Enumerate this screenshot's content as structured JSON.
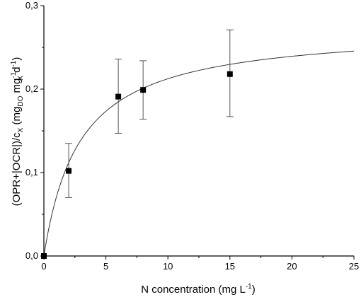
{
  "chart_data": {
    "type": "scatter",
    "x_ticks": [
      "0",
      "5",
      "10",
      "15",
      "20",
      "25"
    ],
    "y_ticks": [
      "0,0",
      "0,1",
      "0,2",
      "0,3"
    ],
    "xlim": [
      0,
      25
    ],
    "ylim": [
      0,
      0.3
    ],
    "xlabel": {
      "main": "N concentration (mg L",
      "sup": "-1",
      "tail": ")"
    },
    "ylabel": {
      "p1": "(OPR+|OCR|)/c",
      "s1": "X",
      "p2": " (mg",
      "s2": "DO",
      "p3": " mg",
      "sup3": "-1",
      "s3": "X",
      "p4": " d",
      "sup4": "-1",
      "p5": ")"
    },
    "points": [
      {
        "x": 0,
        "y": 0.0,
        "err_low": 0.0,
        "err_high": 0.0
      },
      {
        "x": 2,
        "y": 0.102,
        "err_low": 0.07,
        "err_high": 0.135
      },
      {
        "x": 6,
        "y": 0.191,
        "err_low": 0.147,
        "err_high": 0.236
      },
      {
        "x": 8,
        "y": 0.199,
        "err_low": 0.164,
        "err_high": 0.234
      },
      {
        "x": 15,
        "y": 0.218,
        "err_low": 0.167,
        "err_high": 0.271
      }
    ],
    "fit": {
      "model": "monod",
      "vmax": 0.274,
      "k": 2.9
    },
    "grid": false,
    "legend": "none",
    "colors": {
      "marker": "#000000",
      "line": "#333333",
      "axis": "#000000"
    }
  }
}
